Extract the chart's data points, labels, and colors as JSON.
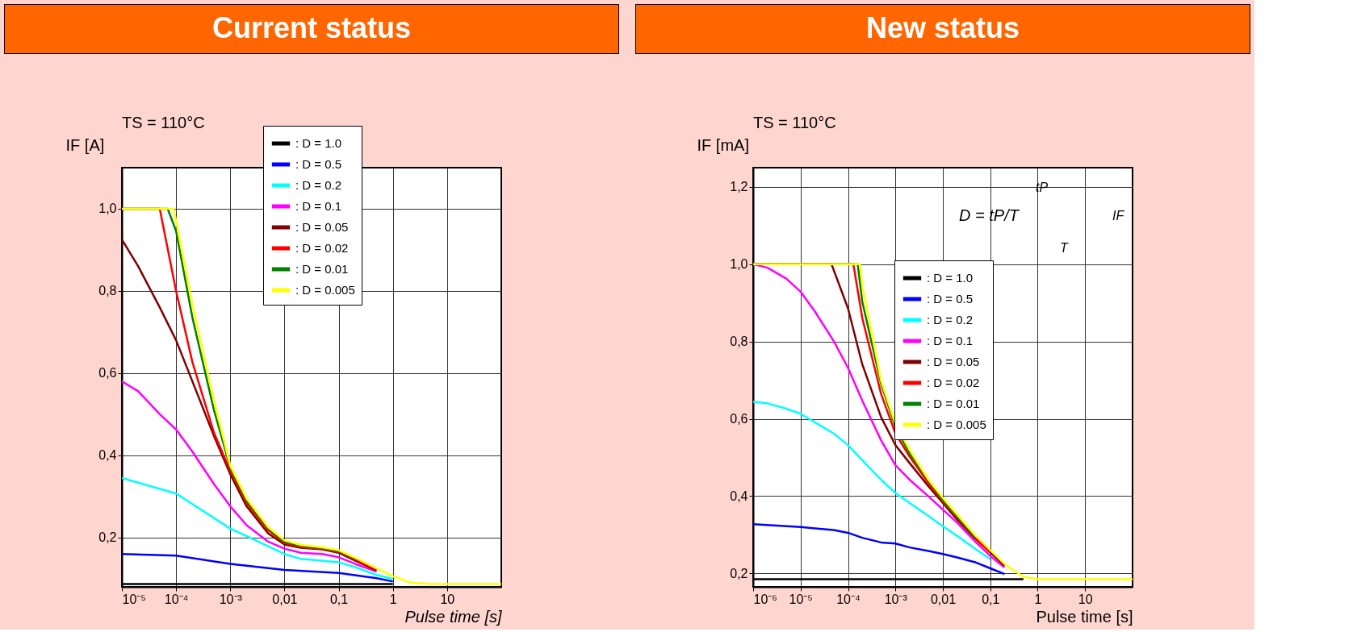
{
  "chart_data": [
    {
      "type": "line",
      "title": "Current status",
      "xlabel": "Pulse time [s]",
      "ylabel": "IF [A]",
      "annotations": [
        "TS = 110°C"
      ],
      "log": "x",
      "grid": true,
      "legend": "top right",
      "line_style": "solid",
      "xlim": [
        1e-05,
        100
      ],
      "ylim": [
        0.08,
        1.1
      ],
      "xticks": [
        {
          "value": 1e-05,
          "label": "10⁻⁵"
        },
        {
          "value": 0.0001,
          "label": "10⁻⁴"
        },
        {
          "value": 0.001,
          "label": "10⁻³"
        },
        {
          "value": 0.01,
          "label": "0,01"
        },
        {
          "value": 0.1,
          "label": "0,1"
        },
        1,
        10
      ],
      "yticks": [
        {
          "value": 0.2,
          "label": "0,2"
        },
        {
          "value": 0.4,
          "label": "0,4"
        },
        {
          "value": 0.6,
          "label": "0,6"
        },
        {
          "value": 0.8,
          "label": "0,8"
        },
        {
          "value": 1.0,
          "label": "1,0"
        }
      ],
      "series": [
        {
          "name": ": D = 1.0",
          "color": "#000000",
          "x": [
            1e-05,
            1
          ],
          "values": [
            0.087,
            0.087
          ]
        },
        {
          "name": ": D = 0.5",
          "color": "#0000ff",
          "x": [
            1e-05,
            0.0001,
            0.001,
            0.01,
            0.1,
            0.5,
            1
          ],
          "values": [
            0.16,
            0.156,
            0.136,
            0.121,
            0.114,
            0.101,
            0.093
          ]
        },
        {
          "name": ": D = 0.2",
          "color": "#00ffff",
          "x": [
            1e-05,
            0.0001,
            0.001,
            0.01,
            0.02,
            0.1,
            0.2,
            0.5,
            1
          ],
          "values": [
            0.345,
            0.307,
            0.222,
            0.16,
            0.148,
            0.14,
            0.128,
            0.109,
            0.099
          ]
        },
        {
          "name": ": D = 0.1",
          "color": "#ff00ff",
          "x": [
            1e-05,
            2e-05,
            5e-05,
            0.0001,
            0.0002,
            0.0005,
            0.001,
            0.002,
            0.005,
            0.01,
            0.02,
            0.05,
            0.1,
            0.2,
            0.5
          ],
          "values": [
            0.58,
            0.556,
            0.5,
            0.463,
            0.409,
            0.33,
            0.276,
            0.23,
            0.19,
            0.173,
            0.163,
            0.16,
            0.152,
            0.136,
            0.117
          ]
        },
        {
          "name": ": D = 0.05",
          "color": "#800000",
          "x": [
            1e-05,
            2e-05,
            5e-05,
            0.0001,
            0.0002,
            0.0005,
            0.001,
            0.002,
            0.005,
            0.01,
            0.02,
            0.05,
            0.1,
            0.2,
            0.5
          ],
          "values": [
            0.925,
            0.86,
            0.76,
            0.68,
            0.58,
            0.447,
            0.354,
            0.276,
            0.21,
            0.183,
            0.175,
            0.171,
            0.163,
            0.144,
            0.12
          ]
        },
        {
          "name": ": D = 0.02",
          "color": "#ff0000",
          "x": [
            1e-05,
            5e-05,
            0.0001,
            0.0002,
            0.0005,
            0.001,
            0.002,
            0.005,
            0.01,
            0.02,
            0.05,
            0.1,
            0.2,
            0.5
          ],
          "values": [
            1.0,
            1.0,
            0.8,
            0.627,
            0.455,
            0.362,
            0.284,
            0.218,
            0.187,
            0.177,
            0.172,
            0.165,
            0.147,
            0.122
          ]
        },
        {
          "name": ": D = 0.01",
          "color": "#008000",
          "x": [
            1e-05,
            7e-05,
            0.0001,
            0.0002,
            0.0005,
            0.001,
            0.002,
            0.005,
            0.01,
            0.02,
            0.05,
            0.1,
            0.2
          ],
          "values": [
            1.0,
            1.0,
            0.946,
            0.735,
            0.51,
            0.37,
            0.29,
            0.222,
            0.19,
            0.18,
            0.174,
            0.167,
            0.149
          ]
        },
        {
          "name": ": D = 0.005",
          "color": "#ffff00",
          "x": [
            1e-05,
            9e-05,
            0.0001,
            0.0002,
            0.0005,
            0.001,
            0.002,
            0.005,
            0.01,
            0.02,
            0.05,
            0.1,
            0.2,
            0.5,
            1,
            2,
            5,
            100
          ],
          "values": [
            1.0,
            1.0,
            0.97,
            0.767,
            0.533,
            0.375,
            0.295,
            0.225,
            0.193,
            0.182,
            0.176,
            0.169,
            0.151,
            0.125,
            0.106,
            0.091,
            0.087,
            0.087
          ]
        }
      ]
    },
    {
      "type": "line",
      "title": "New status",
      "xlabel": "Pulse time [s]",
      "ylabel": "IF [mA]",
      "annotations": [
        "TS = 110°C",
        "D = tP/T",
        "tP",
        "T",
        "IF"
      ],
      "log": "x",
      "grid": true,
      "legend": "right",
      "line_style": "solid",
      "xlim": [
        1e-06,
        100
      ],
      "ylim": [
        0.165,
        1.25
      ],
      "xticks": [
        {
          "value": 1e-06,
          "label": "10⁻⁶"
        },
        {
          "value": 1e-05,
          "label": "10⁻⁵"
        },
        {
          "value": 0.0001,
          "label": "10⁻⁴"
        },
        {
          "value": 0.001,
          "label": "10⁻³"
        },
        {
          "value": 0.01,
          "label": "0,01"
        },
        {
          "value": 0.1,
          "label": "0,1"
        },
        1,
        10
      ],
      "yticks": [
        {
          "value": 0.2,
          "label": "0,2"
        },
        {
          "value": 0.4,
          "label": "0,4"
        },
        {
          "value": 0.6,
          "label": "0,6"
        },
        {
          "value": 0.8,
          "label": "0,8"
        },
        {
          "value": 1.0,
          "label": "1,0"
        },
        {
          "value": 1.2,
          "label": "1,2"
        }
      ],
      "series": [
        {
          "name": ": D = 1.0",
          "color": "#000000",
          "x": [
            1e-06,
            0.5
          ],
          "values": [
            0.185,
            0.185
          ]
        },
        {
          "name": ": D = 0.5",
          "color": "#0000ff",
          "x": [
            1e-06,
            1e-05,
            5e-05,
            0.0001,
            0.0002,
            0.0005,
            0.001,
            0.002,
            0.005,
            0.01,
            0.02,
            0.05,
            0.1,
            0.2
          ],
          "values": [
            0.327,
            0.32,
            0.312,
            0.305,
            0.292,
            0.28,
            0.277,
            0.267,
            0.258,
            0.25,
            0.241,
            0.228,
            0.213,
            0.198
          ]
        },
        {
          "name": ": D = 0.2",
          "color": "#00ffff",
          "x": [
            1e-06,
            2e-06,
            5e-06,
            1e-05,
            2e-05,
            5e-05,
            0.0001,
            0.0002,
            0.0005,
            0.001,
            0.002,
            0.005,
            0.01,
            0.02,
            0.05,
            0.1
          ],
          "values": [
            0.644,
            0.64,
            0.626,
            0.613,
            0.591,
            0.562,
            0.532,
            0.493,
            0.442,
            0.408,
            0.382,
            0.348,
            0.322,
            0.297,
            0.262,
            0.237
          ]
        },
        {
          "name": ": D = 0.1",
          "color": "#ff00ff",
          "x": [
            1e-06,
            2e-06,
            5e-06,
            1e-05,
            2e-05,
            5e-05,
            0.0001,
            0.0002,
            0.0005,
            0.001,
            0.002,
            0.005,
            0.01,
            0.02,
            0.05,
            0.1,
            0.2
          ],
          "values": [
            1.0,
            0.991,
            0.963,
            0.929,
            0.878,
            0.801,
            0.732,
            0.647,
            0.544,
            0.48,
            0.442,
            0.399,
            0.365,
            0.331,
            0.28,
            0.245,
            0.215
          ]
        },
        {
          "name": ": D = 0.05",
          "color": "#800000",
          "x": [
            1e-06,
            4.5e-05,
            0.0001,
            0.0002,
            0.0005,
            0.001,
            0.002,
            0.005,
            0.01,
            0.02,
            0.05,
            0.1,
            0.2
          ],
          "values": [
            1.0,
            1.0,
            0.886,
            0.741,
            0.604,
            0.532,
            0.485,
            0.425,
            0.382,
            0.339,
            0.288,
            0.254,
            0.22
          ]
        },
        {
          "name": ": D = 0.02",
          "color": "#ff0000",
          "x": [
            1e-06,
            0.00013,
            0.0002,
            0.0005,
            0.001,
            0.002,
            0.005,
            0.01,
            0.02,
            0.05,
            0.1
          ],
          "values": [
            1.0,
            1.0,
            0.861,
            0.664,
            0.562,
            0.502,
            0.433,
            0.386,
            0.344,
            0.29,
            0.254
          ]
        },
        {
          "name": ": D = 0.01",
          "color": "#008000",
          "x": [
            1e-06,
            0.00016,
            0.0002,
            0.0005,
            0.001,
            0.002,
            0.005,
            0.01,
            0.02,
            0.05
          ],
          "values": [
            1.0,
            1.0,
            0.903,
            0.69,
            0.579,
            0.51,
            0.44,
            0.39,
            0.347,
            0.292
          ]
        },
        {
          "name": ": D = 0.005",
          "color": "#ffff00",
          "x": [
            1e-06,
            0.00018,
            0.0002,
            0.0005,
            0.001,
            0.002,
            0.005,
            0.01,
            0.02,
            0.05,
            0.1,
            0.2,
            0.5,
            1,
            100
          ],
          "values": [
            1.0,
            1.0,
            0.946,
            0.698,
            0.587,
            0.519,
            0.442,
            0.395,
            0.352,
            0.296,
            0.26,
            0.224,
            0.191,
            0.185,
            0.185
          ]
        }
      ]
    }
  ]
}
